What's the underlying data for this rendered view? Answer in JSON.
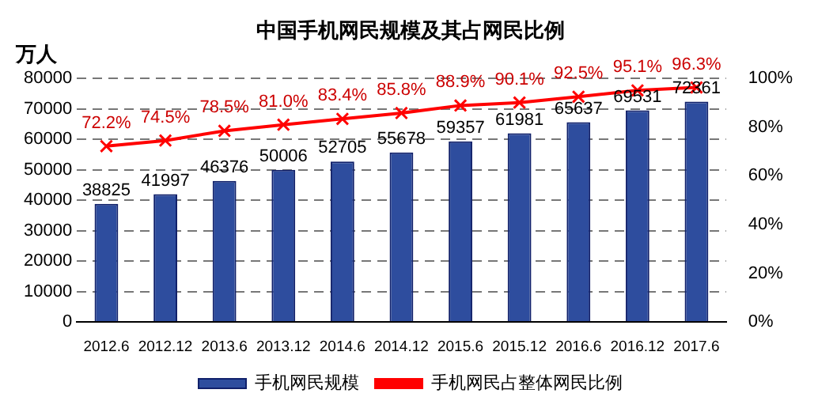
{
  "chart_data": {
    "type": "bar",
    "title": "中国手机网民规模及其占网民比例",
    "ylabel": "万人",
    "categories": [
      "2012.6",
      "2012.12",
      "2013.6",
      "2013.12",
      "2014.6",
      "2014.12",
      "2015.6",
      "2015.12",
      "2016.6",
      "2016.12",
      "2017.6"
    ],
    "series": [
      {
        "name": "手机网民规模",
        "color": "#2e4d9e",
        "values": [
          38825,
          41997,
          46376,
          50006,
          52705,
          55678,
          59357,
          61981,
          65637,
          69531,
          72361
        ],
        "value_labels": [
          "38825",
          "41997",
          "46376",
          "50006",
          "52705",
          "55678",
          "59357",
          "61981",
          "65637",
          "69531",
          "72361"
        ]
      },
      {
        "name": "手机网民占整体网民比例",
        "type": "line",
        "axis": "y2",
        "color": "#ff0000",
        "marker": "cross",
        "values": [
          72.2,
          74.5,
          78.5,
          81.0,
          83.4,
          85.8,
          88.9,
          90.1,
          92.5,
          95.1,
          96.3
        ],
        "value_labels": [
          "72.2%",
          "74.5%",
          "78.5%",
          "81.0%",
          "83.4%",
          "85.8%",
          "88.9%",
          "90.1%",
          "92.5%",
          "95.1%",
          "96.3%"
        ]
      }
    ],
    "ylim": [
      0,
      80000
    ],
    "yticks": [
      0,
      10000,
      20000,
      30000,
      40000,
      50000,
      60000,
      70000,
      80000
    ],
    "y2lim": [
      0,
      100
    ],
    "y2ticks": [
      {
        "value": 0,
        "label": "0%"
      },
      {
        "value": 20,
        "label": "20%"
      },
      {
        "value": 40,
        "label": "40%"
      },
      {
        "value": 60,
        "label": "60%"
      },
      {
        "value": 80,
        "label": "80%"
      },
      {
        "value": 100,
        "label": "100%"
      }
    ],
    "grid": "y",
    "legend": "bottom"
  }
}
